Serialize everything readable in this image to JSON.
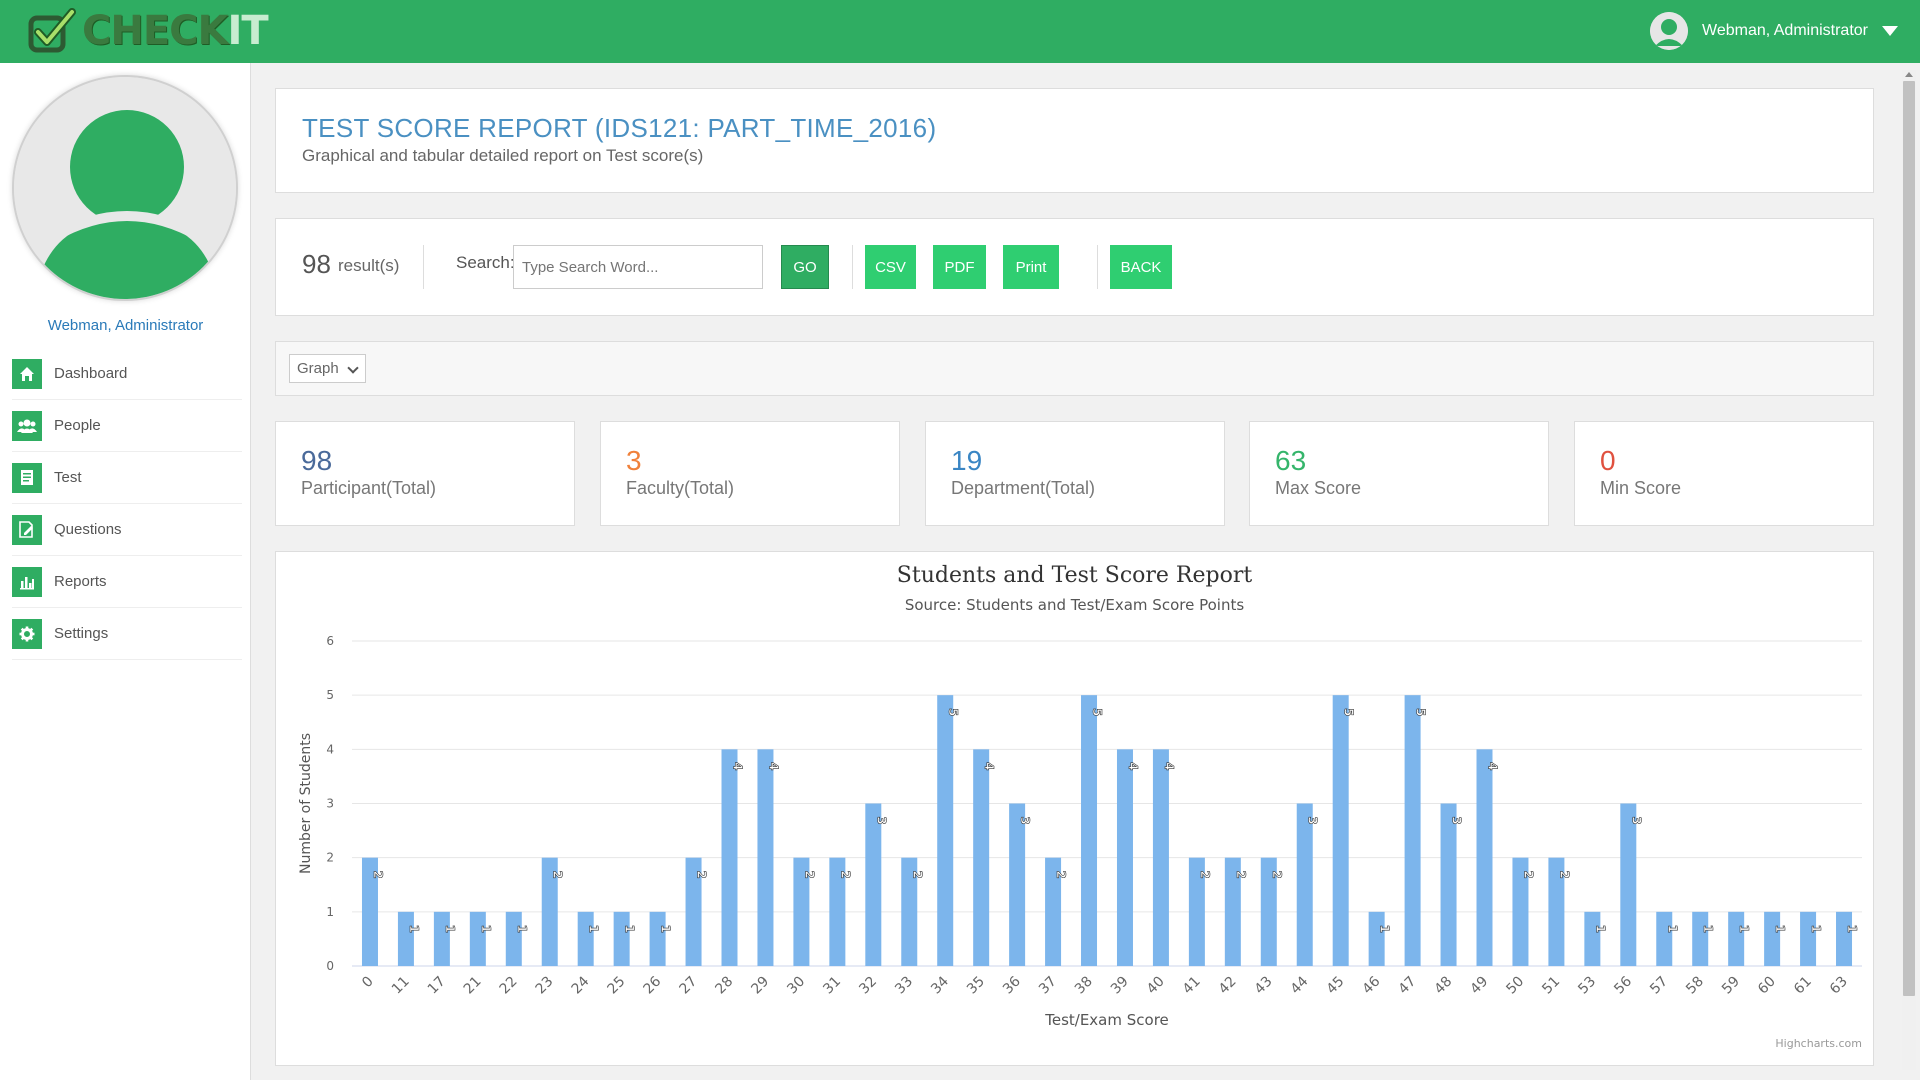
{
  "app": {
    "logo_text_a": "CHECK",
    "logo_text_b": "IT",
    "user_name": "Webman, Administrator"
  },
  "sidebar": {
    "user_name": "Webman, Administrator",
    "items": [
      {
        "label": "Dashboard",
        "icon": "home-icon"
      },
      {
        "label": "People",
        "icon": "people-icon"
      },
      {
        "label": "Test",
        "icon": "document-icon"
      },
      {
        "label": "Questions",
        "icon": "edit-document-icon"
      },
      {
        "label": "Reports",
        "icon": "bar-chart-icon"
      },
      {
        "label": "Settings",
        "icon": "gear-icon"
      }
    ]
  },
  "header": {
    "title": "TEST SCORE REPORT (IDS121: PART_TIME_2016)",
    "subtitle": "Graphical and tabular detailed report on Test score(s)"
  },
  "toolbar": {
    "result_count": "98",
    "result_label": "result(s)",
    "search_label": "Search:",
    "search_placeholder": "Type Search Word...",
    "go_label": "GO",
    "csv_label": "CSV",
    "pdf_label": "PDF",
    "print_label": "Print",
    "back_label": "BACK"
  },
  "view": {
    "selected": "Graph"
  },
  "stats": [
    {
      "value": "98",
      "label": "Participant(Total)",
      "color": "#4a6a9a"
    },
    {
      "value": "3",
      "label": "Faculty(Total)",
      "color": "#f0813b"
    },
    {
      "value": "19",
      "label": "Department(Total)",
      "color": "#3a86c4"
    },
    {
      "value": "63",
      "label": "Max Score",
      "color": "#35b56b"
    },
    {
      "value": "0",
      "label": "Min Score",
      "color": "#e0513f"
    }
  ],
  "colors": {
    "brand_green": "#2fad62",
    "button_green": "#2fce71",
    "bar_blue": "#7cb5ec"
  },
  "chart_data": {
    "type": "bar",
    "title": "Students and Test Score Report",
    "subtitle": "Source: Students and Test/Exam Score Points",
    "xlabel": "Test/Exam Score",
    "ylabel": "Number of Students",
    "ylim": [
      0,
      6
    ],
    "yticks": [
      "0",
      "1",
      "2",
      "3",
      "4",
      "5",
      "6"
    ],
    "grid": true,
    "credits": "Highcharts.com",
    "categories": [
      "0",
      "11",
      "17",
      "21",
      "22",
      "23",
      "24",
      "25",
      "26",
      "27",
      "28",
      "29",
      "30",
      "31",
      "32",
      "33",
      "34",
      "35",
      "36",
      "37",
      "38",
      "39",
      "40",
      "41",
      "42",
      "43",
      "44",
      "45",
      "46",
      "47",
      "48",
      "49",
      "50",
      "51",
      "53",
      "56",
      "57",
      "58",
      "59",
      "60",
      "61",
      "63"
    ],
    "values": [
      2,
      1,
      1,
      1,
      1,
      2,
      1,
      1,
      1,
      2,
      4,
      4,
      2,
      2,
      3,
      2,
      5,
      4,
      3,
      2,
      5,
      4,
      4,
      2,
      2,
      2,
      3,
      5,
      1,
      5,
      3,
      4,
      2,
      2,
      1,
      3,
      1,
      1,
      1,
      1,
      1,
      1
    ]
  }
}
